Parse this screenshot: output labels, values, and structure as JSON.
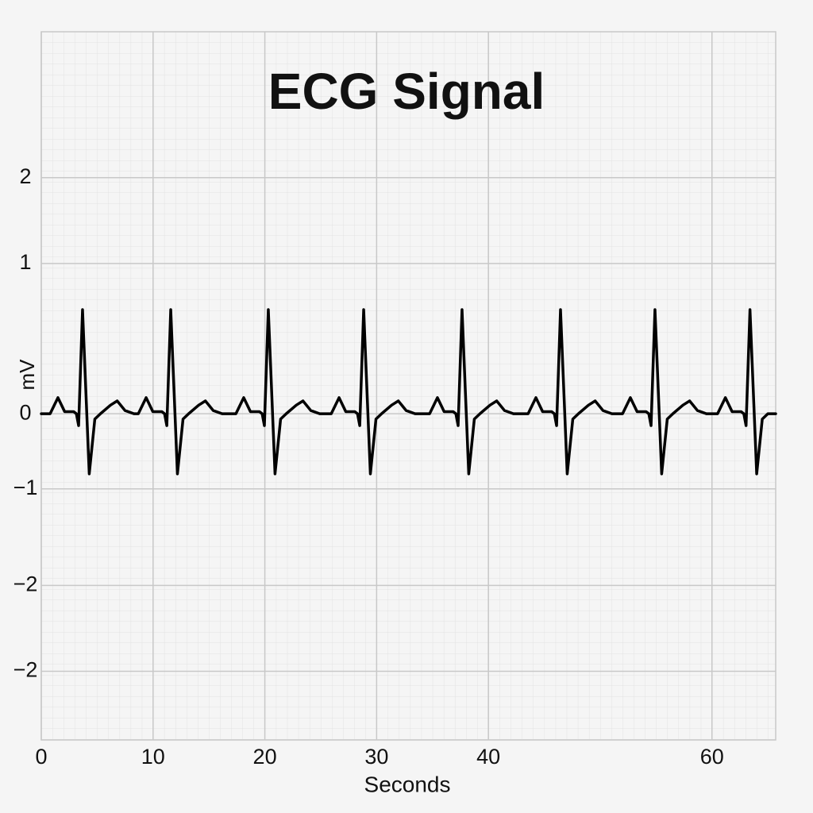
{
  "chart_data": {
    "type": "line",
    "title": "ECG Signal",
    "xlabel": "Seconds",
    "ylabel": "mV",
    "color": "#000000",
    "grid": true,
    "xlim": [
      0,
      65.7
    ],
    "ylim": [
      -3.04,
      3.56
    ],
    "xticks": [
      0,
      10,
      20,
      30,
      40,
      60
    ],
    "yticks": [
      {
        "value": 2.2,
        "label": "2"
      },
      {
        "value": 1.4,
        "label": "1"
      },
      {
        "value": 0,
        "label": "0"
      },
      {
        "value": -0.7,
        "label": "−1"
      },
      {
        "value": -1.6,
        "label": "−2"
      },
      {
        "value": -2.4,
        "label": "−2"
      }
    ],
    "x": [
      0,
      0.79,
      1.49,
      2.09,
      2.89,
      3.14,
      3.34,
      3.69,
      4.29,
      4.79,
      5.29,
      6.19,
      6.79,
      7.49,
      8.29,
      8.68,
      9.38,
      9.98,
      10.78,
      11.03,
      11.23,
      11.58,
      12.18,
      12.68,
      13.18,
      14.08,
      14.68,
      15.38,
      16.18,
      17.41,
      18.11,
      18.71,
      19.51,
      19.76,
      19.96,
      20.31,
      20.91,
      21.41,
      21.91,
      22.81,
      23.41,
      24.11,
      24.91,
      25.94,
      26.64,
      27.24,
      28.04,
      28.29,
      28.49,
      28.84,
      29.44,
      29.94,
      30.44,
      31.34,
      31.94,
      32.64,
      33.44,
      34.74,
      35.44,
      36.04,
      36.84,
      37.09,
      37.29,
      37.64,
      38.24,
      38.74,
      39.24,
      40.14,
      40.74,
      41.44,
      42.24,
      43.55,
      44.25,
      44.85,
      45.65,
      45.9,
      46.1,
      46.45,
      47.05,
      47.55,
      48.05,
      48.95,
      49.55,
      50.25,
      51.05,
      52.0,
      52.7,
      53.3,
      54.1,
      54.35,
      54.55,
      54.9,
      55.5,
      56.0,
      56.5,
      57.4,
      58.0,
      58.7,
      59.5,
      60.5,
      61.2,
      61.8,
      62.6,
      62.85,
      63.05,
      63.4,
      64.0,
      64.5,
      65.0,
      65.7
    ],
    "values": [
      0,
      0,
      0.15,
      0.02,
      0.02,
      0,
      -0.11,
      0.97,
      -0.56,
      -0.05,
      0,
      0.08,
      0.12,
      0.03,
      0,
      0,
      0.15,
      0.02,
      0.02,
      0,
      -0.11,
      0.97,
      -0.56,
      -0.05,
      0,
      0.08,
      0.12,
      0.03,
      0,
      0,
      0.15,
      0.02,
      0.02,
      0,
      -0.11,
      0.97,
      -0.56,
      -0.05,
      0,
      0.08,
      0.12,
      0.03,
      0,
      0,
      0.15,
      0.02,
      0.02,
      0,
      -0.11,
      0.97,
      -0.56,
      -0.05,
      0,
      0.08,
      0.12,
      0.03,
      0,
      0,
      0.15,
      0.02,
      0.02,
      0,
      -0.11,
      0.97,
      -0.56,
      -0.05,
      0,
      0.08,
      0.12,
      0.03,
      0,
      0,
      0.15,
      0.02,
      0.02,
      0,
      -0.11,
      0.97,
      -0.56,
      -0.05,
      0,
      0.08,
      0.12,
      0.03,
      0,
      0,
      0.15,
      0.02,
      0.02,
      0,
      -0.11,
      0.97,
      -0.56,
      -0.05,
      0,
      0.08,
      0.12,
      0.03,
      0,
      0,
      0.15,
      0.02,
      0.02,
      0,
      -0.11,
      0.97,
      -0.56,
      -0.05,
      0,
      0
    ]
  }
}
